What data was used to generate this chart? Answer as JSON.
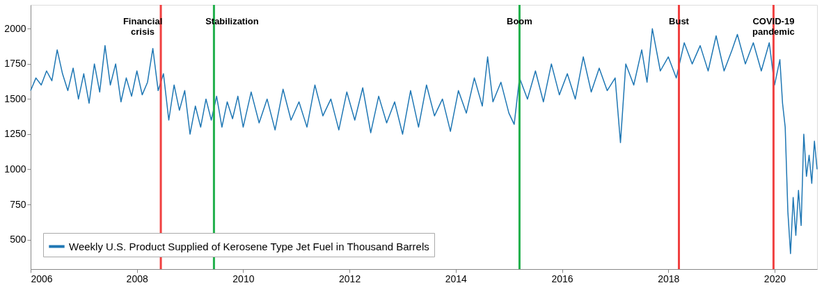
{
  "chart_data": {
    "type": "line",
    "legend": "bottom left",
    "grid": false,
    "xlim": [
      2006,
      2020.8
    ],
    "xticks": [
      2006,
      2008,
      2010,
      2012,
      2014,
      2016,
      2018,
      2020
    ],
    "ylim": [
      290,
      2170
    ],
    "yticks": [
      500,
      750,
      1000,
      1250,
      1500,
      1750,
      2000
    ],
    "x": [
      2006.0,
      2006.1,
      2006.2,
      2006.3,
      2006.4,
      2006.5,
      2006.6,
      2006.7,
      2006.8,
      2006.9,
      2007.0,
      2007.1,
      2007.2,
      2007.3,
      2007.4,
      2007.5,
      2007.6,
      2007.7,
      2007.8,
      2007.9,
      2008.0,
      2008.1,
      2008.2,
      2008.3,
      2008.4,
      2008.5,
      2008.6,
      2008.7,
      2008.8,
      2008.9,
      2009.0,
      2009.1,
      2009.2,
      2009.3,
      2009.4,
      2009.5,
      2009.6,
      2009.7,
      2009.8,
      2009.9,
      2010.0,
      2010.15,
      2010.3,
      2010.45,
      2010.6,
      2010.75,
      2010.9,
      2011.05,
      2011.2,
      2011.35,
      2011.5,
      2011.65,
      2011.8,
      2011.95,
      2012.1,
      2012.25,
      2012.4,
      2012.55,
      2012.7,
      2012.85,
      2013.0,
      2013.15,
      2013.3,
      2013.45,
      2013.6,
      2013.75,
      2013.9,
      2014.05,
      2014.2,
      2014.35,
      2014.5,
      2014.6,
      2014.7,
      2014.85,
      2015.0,
      2015.1,
      2015.2,
      2015.35,
      2015.5,
      2015.65,
      2015.8,
      2015.95,
      2016.1,
      2016.25,
      2016.4,
      2016.55,
      2016.7,
      2016.85,
      2017.0,
      2017.1,
      2017.2,
      2017.35,
      2017.5,
      2017.6,
      2017.7,
      2017.85,
      2018.0,
      2018.15,
      2018.3,
      2018.45,
      2018.6,
      2018.75,
      2018.9,
      2019.05,
      2019.2,
      2019.3,
      2019.45,
      2019.6,
      2019.75,
      2019.9,
      2020.0,
      2020.1,
      2020.15,
      2020.2,
      2020.25,
      2020.3,
      2020.35,
      2020.4,
      2020.45,
      2020.5,
      2020.55,
      2020.6,
      2020.65,
      2020.7,
      2020.75,
      2020.8
    ],
    "series": [
      {
        "name": "Weekly U.S. Product Supplied of Kerosene Type Jet Fuel in Thousand Barrels",
        "color": "#1f77b4",
        "values": [
          1560,
          1650,
          1600,
          1700,
          1630,
          1850,
          1680,
          1560,
          1720,
          1500,
          1680,
          1470,
          1750,
          1550,
          1880,
          1600,
          1750,
          1480,
          1650,
          1520,
          1700,
          1530,
          1620,
          1860,
          1560,
          1680,
          1350,
          1600,
          1420,
          1560,
          1250,
          1450,
          1300,
          1500,
          1350,
          1520,
          1300,
          1480,
          1360,
          1520,
          1300,
          1550,
          1330,
          1500,
          1280,
          1570,
          1350,
          1480,
          1300,
          1600,
          1380,
          1500,
          1280,
          1550,
          1350,
          1580,
          1260,
          1520,
          1330,
          1480,
          1250,
          1560,
          1300,
          1600,
          1380,
          1500,
          1270,
          1560,
          1400,
          1650,
          1450,
          1800,
          1480,
          1620,
          1400,
          1320,
          1650,
          1500,
          1700,
          1480,
          1750,
          1530,
          1680,
          1500,
          1800,
          1550,
          1720,
          1560,
          1650,
          1190,
          1750,
          1600,
          1850,
          1620,
          2000,
          1700,
          1800,
          1650,
          1900,
          1750,
          1880,
          1700,
          1950,
          1700,
          1850,
          1960,
          1750,
          1900,
          1700,
          1900,
          1600,
          1780,
          1470,
          1300,
          700,
          400,
          800,
          530,
          850,
          600,
          1250,
          950,
          1100,
          900,
          1200,
          1000
        ]
      }
    ],
    "ref_lines": [
      {
        "axis": "x",
        "value": 2008.45,
        "label": "Financial crisis",
        "color": "#f04040"
      },
      {
        "axis": "x",
        "value": 2009.45,
        "label": "Stabilization",
        "color": "#22b04c"
      },
      {
        "axis": "x",
        "value": 2015.2,
        "label": "Boom",
        "color": "#22b04c"
      },
      {
        "axis": "x",
        "value": 2018.2,
        "label": "Bust",
        "color": "#f04040"
      },
      {
        "axis": "x",
        "value": 2019.98,
        "label": "COVID-19 pandemic",
        "color": "#f04040"
      }
    ]
  }
}
